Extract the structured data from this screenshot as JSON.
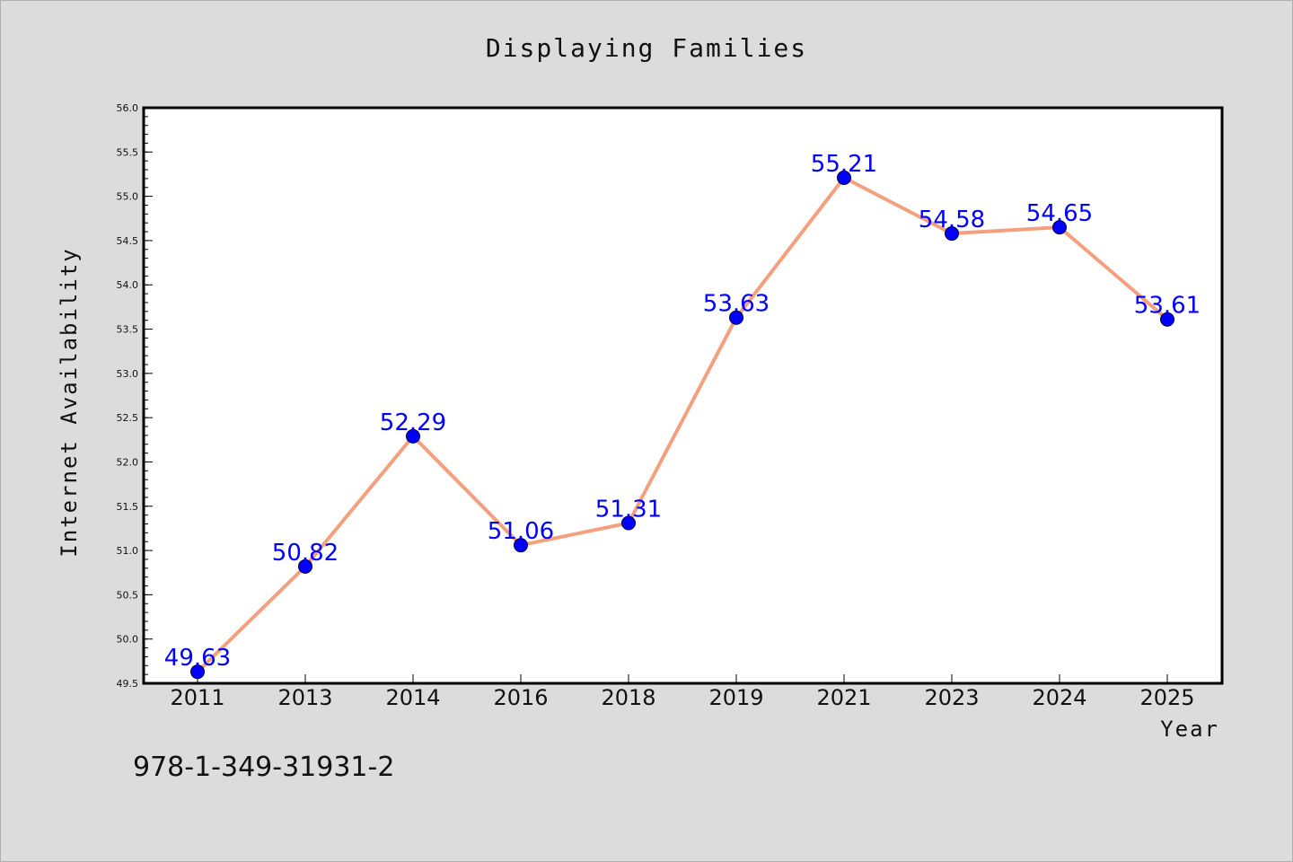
{
  "chart_data": {
    "type": "line",
    "title": "Displaying Families",
    "xlabel": "Year",
    "ylabel": "Internet Availability",
    "categories": [
      "2011",
      "2013",
      "2014",
      "2016",
      "2018",
      "2019",
      "2021",
      "2023",
      "2024",
      "2025"
    ],
    "series": [
      {
        "values": [
          49.63,
          50.82,
          52.29,
          51.06,
          51.31,
          53.63,
          55.21,
          54.58,
          54.65,
          53.61
        ],
        "data_labels": [
          "49.63",
          "50.82",
          "52.29",
          "51.06",
          "51.31",
          "53.63",
          "55.21",
          "54.58",
          "54.65",
          "53.61"
        ],
        "line_color": "#f4a07e",
        "marker_color": "#0000ff"
      }
    ],
    "ylim": [
      49.5,
      56.0
    ],
    "yticks": [
      "49.5",
      "50.0",
      "50.5",
      "51.0",
      "51.5",
      "52.0",
      "52.5",
      "53.0",
      "53.5",
      "54.0",
      "54.5",
      "55.0",
      "55.5",
      "56.0"
    ],
    "grid": false,
    "legend": "none"
  },
  "footnote": "978-1-349-31931-2",
  "colors": {
    "background": "#dcdcdc",
    "plot_background": "#ffffff",
    "data_label": "#0000ff"
  }
}
